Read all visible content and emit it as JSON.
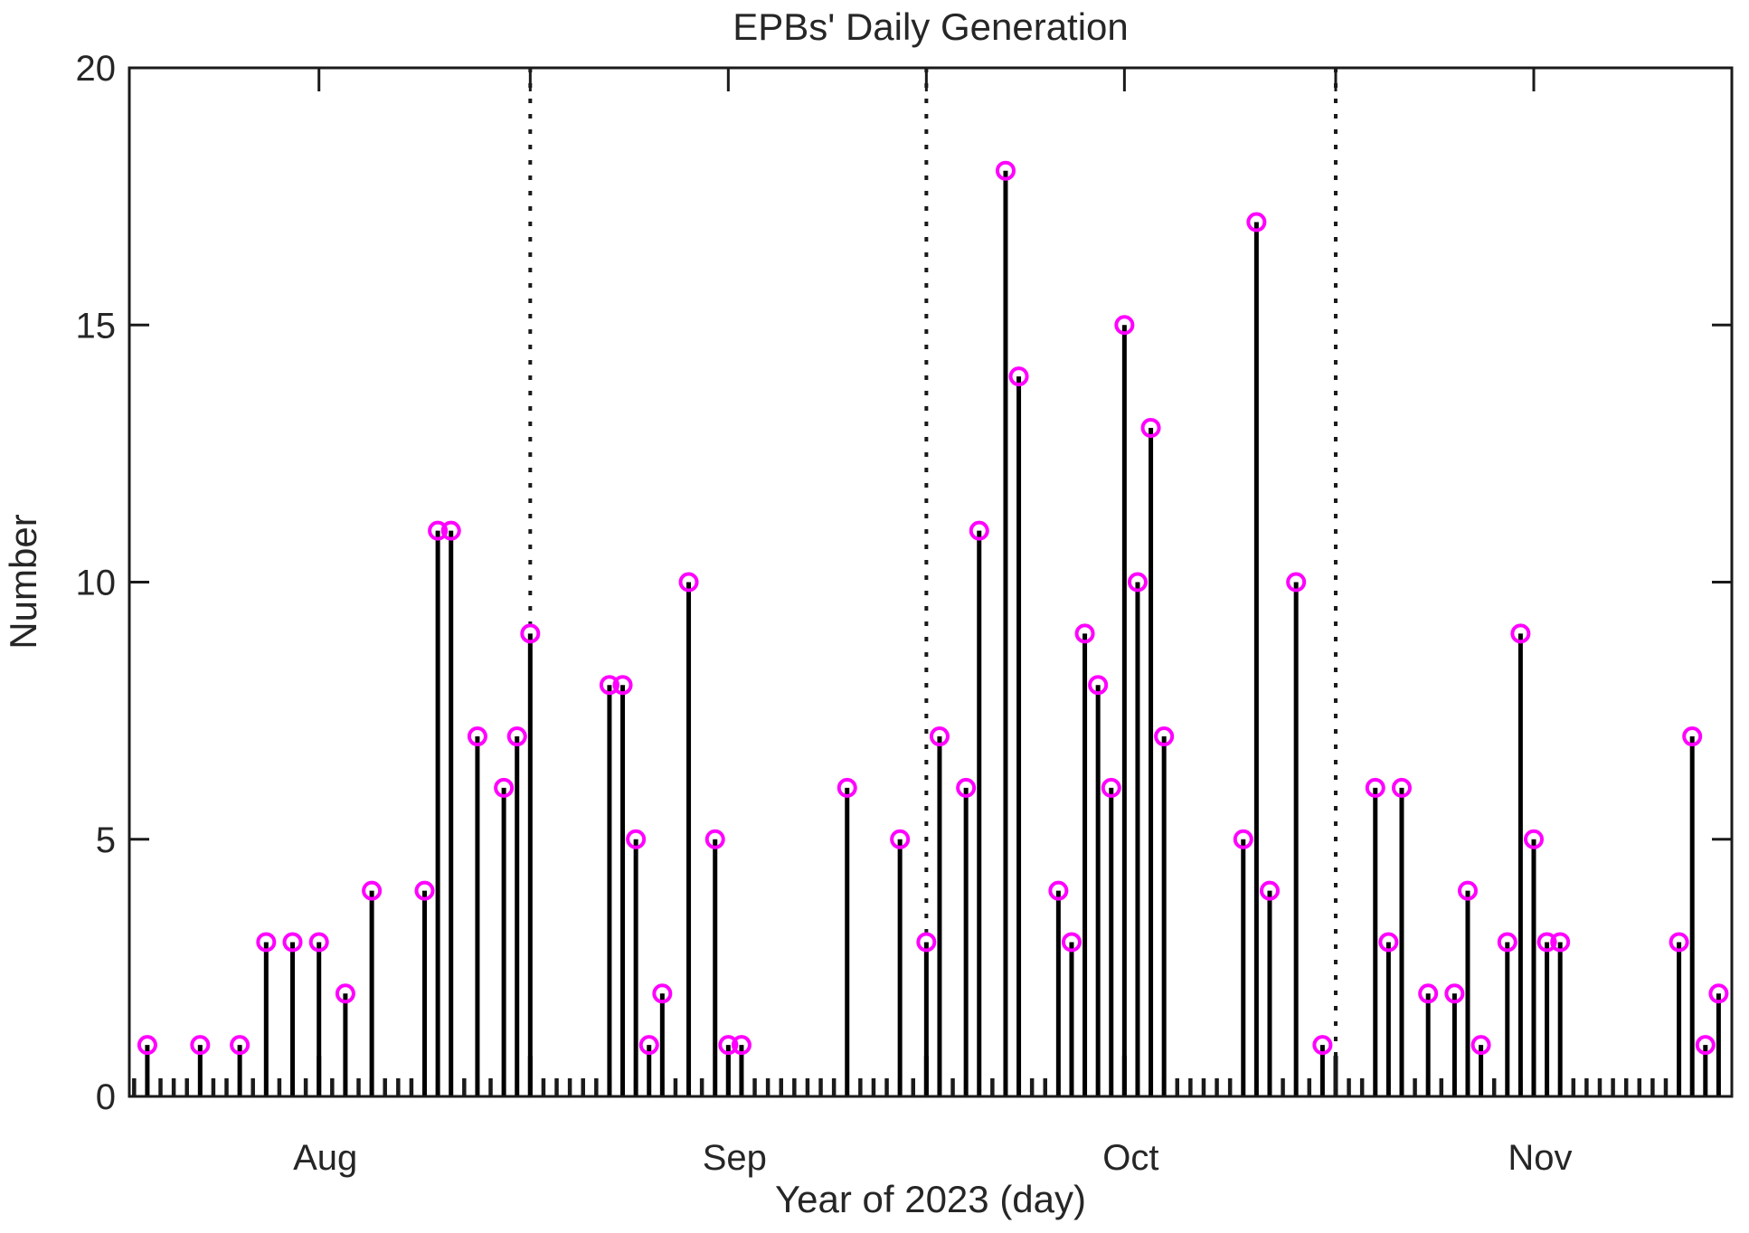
{
  "figure": {
    "title": "EPBs' Daily Generation",
    "xlabel": "Year of 2023 (day)",
    "ylabel": "Number",
    "background_color": "#ffffff",
    "axis_color": "#1a1a1a",
    "text_color": "#262626",
    "stem_color": "#000000",
    "marker_color": "#ff00ff"
  },
  "chart_data": {
    "type": "stem",
    "title": "EPBs' Daily Generation",
    "xlabel": "Year of 2023 (day)",
    "ylabel": "Number",
    "ylim": [
      0,
      20
    ],
    "y_ticks": [
      0,
      5,
      10,
      15,
      20
    ],
    "x_range_days": 122,
    "x_start_date": "2023-08-01",
    "x_end_date": "2023-12-01",
    "month_tick_labels": [
      {
        "label": "Aug",
        "day_index": 15
      },
      {
        "label": "Sep",
        "day_index": 46
      },
      {
        "label": "Oct",
        "day_index": 76
      },
      {
        "label": "Nov",
        "day_index": 107
      }
    ],
    "long_tick_day_indices": [
      15,
      31,
      46,
      61,
      76,
      92,
      107
    ],
    "dotted_lines": [
      {
        "date": "Sep 1",
        "day_index": 31
      },
      {
        "date": "Oct 1",
        "day_index": 61
      },
      {
        "date": "Nov 1",
        "day_index": 92
      }
    ],
    "grid": "off",
    "legend": "none",
    "marker_style": "open-circle",
    "points": [
      {
        "date": "Aug 3",
        "day_index": 2,
        "value": 1
      },
      {
        "date": "Aug 7",
        "day_index": 6,
        "value": 1
      },
      {
        "date": "Aug 10",
        "day_index": 9,
        "value": 1
      },
      {
        "date": "Aug 12",
        "day_index": 11,
        "value": 3
      },
      {
        "date": "Aug 14",
        "day_index": 13,
        "value": 3
      },
      {
        "date": "Aug 16",
        "day_index": 15,
        "value": 3
      },
      {
        "date": "Aug 18",
        "day_index": 17,
        "value": 2
      },
      {
        "date": "Aug 20",
        "day_index": 19,
        "value": 4
      },
      {
        "date": "Aug 24",
        "day_index": 23,
        "value": 4
      },
      {
        "date": "Aug 25",
        "day_index": 24,
        "value": 11
      },
      {
        "date": "Aug 26",
        "day_index": 25,
        "value": 11
      },
      {
        "date": "Aug 28",
        "day_index": 27,
        "value": 7
      },
      {
        "date": "Aug 30",
        "day_index": 29,
        "value": 6
      },
      {
        "date": "Aug 31",
        "day_index": 30,
        "value": 7
      },
      {
        "date": "Sep 1",
        "day_index": 31,
        "value": 9
      },
      {
        "date": "Sep 7",
        "day_index": 37,
        "value": 8
      },
      {
        "date": "Sep 8",
        "day_index": 38,
        "value": 8
      },
      {
        "date": "Sep 9",
        "day_index": 39,
        "value": 5
      },
      {
        "date": "Sep 10",
        "day_index": 40,
        "value": 1
      },
      {
        "date": "Sep 11",
        "day_index": 41,
        "value": 2
      },
      {
        "date": "Sep 13",
        "day_index": 43,
        "value": 10
      },
      {
        "date": "Sep 15",
        "day_index": 45,
        "value": 5
      },
      {
        "date": "Sep 16",
        "day_index": 46,
        "value": 1
      },
      {
        "date": "Sep 17",
        "day_index": 47,
        "value": 1
      },
      {
        "date": "Sep 25",
        "day_index": 55,
        "value": 6
      },
      {
        "date": "Sep 29",
        "day_index": 59,
        "value": 5
      },
      {
        "date": "Oct 1",
        "day_index": 61,
        "value": 3
      },
      {
        "date": "Oct 2",
        "day_index": 62,
        "value": 7
      },
      {
        "date": "Oct 4",
        "day_index": 64,
        "value": 6
      },
      {
        "date": "Oct 5",
        "day_index": 65,
        "value": 11
      },
      {
        "date": "Oct 7",
        "day_index": 67,
        "value": 18
      },
      {
        "date": "Oct 8",
        "day_index": 68,
        "value": 14
      },
      {
        "date": "Oct 11",
        "day_index": 71,
        "value": 4
      },
      {
        "date": "Oct 12",
        "day_index": 72,
        "value": 3
      },
      {
        "date": "Oct 13",
        "day_index": 73,
        "value": 9
      },
      {
        "date": "Oct 14",
        "day_index": 74,
        "value": 8
      },
      {
        "date": "Oct 15",
        "day_index": 75,
        "value": 6
      },
      {
        "date": "Oct 16",
        "day_index": 76,
        "value": 15
      },
      {
        "date": "Oct 17",
        "day_index": 77,
        "value": 10
      },
      {
        "date": "Oct 18",
        "day_index": 78,
        "value": 13
      },
      {
        "date": "Oct 19",
        "day_index": 79,
        "value": 7
      },
      {
        "date": "Oct 25",
        "day_index": 85,
        "value": 5
      },
      {
        "date": "Oct 26",
        "day_index": 86,
        "value": 17
      },
      {
        "date": "Oct 27",
        "day_index": 87,
        "value": 4
      },
      {
        "date": "Oct 29",
        "day_index": 89,
        "value": 10
      },
      {
        "date": "Oct 31",
        "day_index": 91,
        "value": 1
      },
      {
        "date": "Nov 4",
        "day_index": 95,
        "value": 6
      },
      {
        "date": "Nov 5",
        "day_index": 96,
        "value": 3
      },
      {
        "date": "Nov 6",
        "day_index": 97,
        "value": 6
      },
      {
        "date": "Nov 8",
        "day_index": 99,
        "value": 2
      },
      {
        "date": "Nov 10",
        "day_index": 101,
        "value": 2
      },
      {
        "date": "Nov 11",
        "day_index": 102,
        "value": 4
      },
      {
        "date": "Nov 12",
        "day_index": 103,
        "value": 1
      },
      {
        "date": "Nov 14",
        "day_index": 105,
        "value": 3
      },
      {
        "date": "Nov 15",
        "day_index": 106,
        "value": 9
      },
      {
        "date": "Nov 16",
        "day_index": 107,
        "value": 5
      },
      {
        "date": "Nov 17",
        "day_index": 108,
        "value": 3
      },
      {
        "date": "Nov 18",
        "day_index": 109,
        "value": 3
      },
      {
        "date": "Nov 27",
        "day_index": 118,
        "value": 3
      },
      {
        "date": "Nov 28",
        "day_index": 119,
        "value": 7
      },
      {
        "date": "Nov 29",
        "day_index": 120,
        "value": 1
      },
      {
        "date": "Nov 30",
        "day_index": 121,
        "value": 2
      }
    ]
  }
}
